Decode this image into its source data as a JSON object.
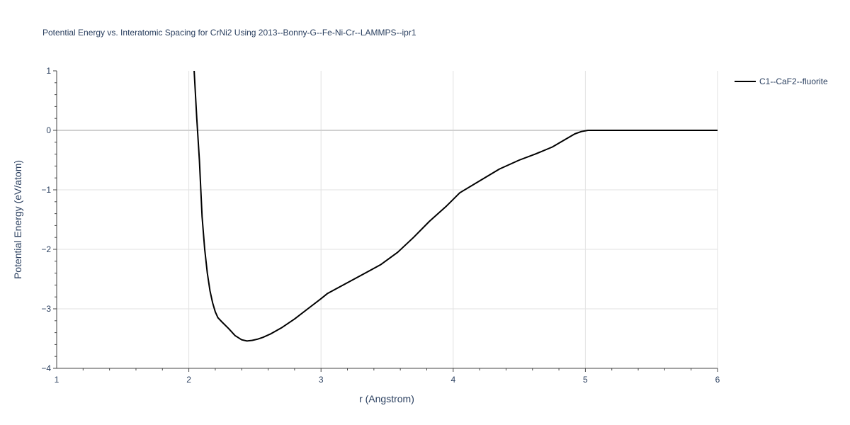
{
  "chart_data": {
    "type": "line",
    "title": "Potential Energy vs. Interatomic Spacing for CrNi2 Using 2013--Bonny-G--Fe-Ni-Cr--LAMMPS--ipr1",
    "xlabel": "r (Angstrom)",
    "ylabel": "Potential Energy (eV/atom)",
    "xlim": [
      1,
      6
    ],
    "ylim": [
      -4,
      1
    ],
    "xticks": [
      "1",
      "2",
      "3",
      "4",
      "5",
      "6"
    ],
    "yticks": [
      "1",
      "0",
      "−1",
      "−2",
      "−3",
      "−4"
    ],
    "grid": true,
    "legend_position": "top-right",
    "series": [
      {
        "name": "C1--CaF2--fluorite",
        "color": "#000000",
        "x": [
          2.04,
          2.06,
          2.08,
          2.1,
          2.12,
          2.14,
          2.16,
          2.18,
          2.2,
          2.22,
          2.25,
          2.3,
          2.35,
          2.4,
          2.44,
          2.48,
          2.52,
          2.56,
          2.62,
          2.7,
          2.8,
          2.9,
          3.0,
          3.05,
          3.15,
          3.3,
          3.45,
          3.58,
          3.7,
          3.82,
          3.95,
          4.05,
          4.2,
          4.35,
          4.5,
          4.62,
          4.75,
          4.85,
          4.92,
          4.97,
          5.02,
          5.1,
          5.3,
          5.6,
          6.0
        ],
        "y": [
          1.0,
          0.2,
          -0.5,
          -1.45,
          -2.0,
          -2.4,
          -2.7,
          -2.9,
          -3.05,
          -3.15,
          -3.22,
          -3.33,
          -3.45,
          -3.52,
          -3.54,
          -3.53,
          -3.51,
          -3.48,
          -3.42,
          -3.32,
          -3.17,
          -3.0,
          -2.83,
          -2.74,
          -2.62,
          -2.44,
          -2.26,
          -2.05,
          -1.8,
          -1.53,
          -1.27,
          -1.05,
          -0.85,
          -0.65,
          -0.5,
          -0.4,
          -0.28,
          -0.15,
          -0.06,
          -0.02,
          0.0,
          0.0,
          0.0,
          0.0,
          0.0
        ]
      }
    ]
  }
}
